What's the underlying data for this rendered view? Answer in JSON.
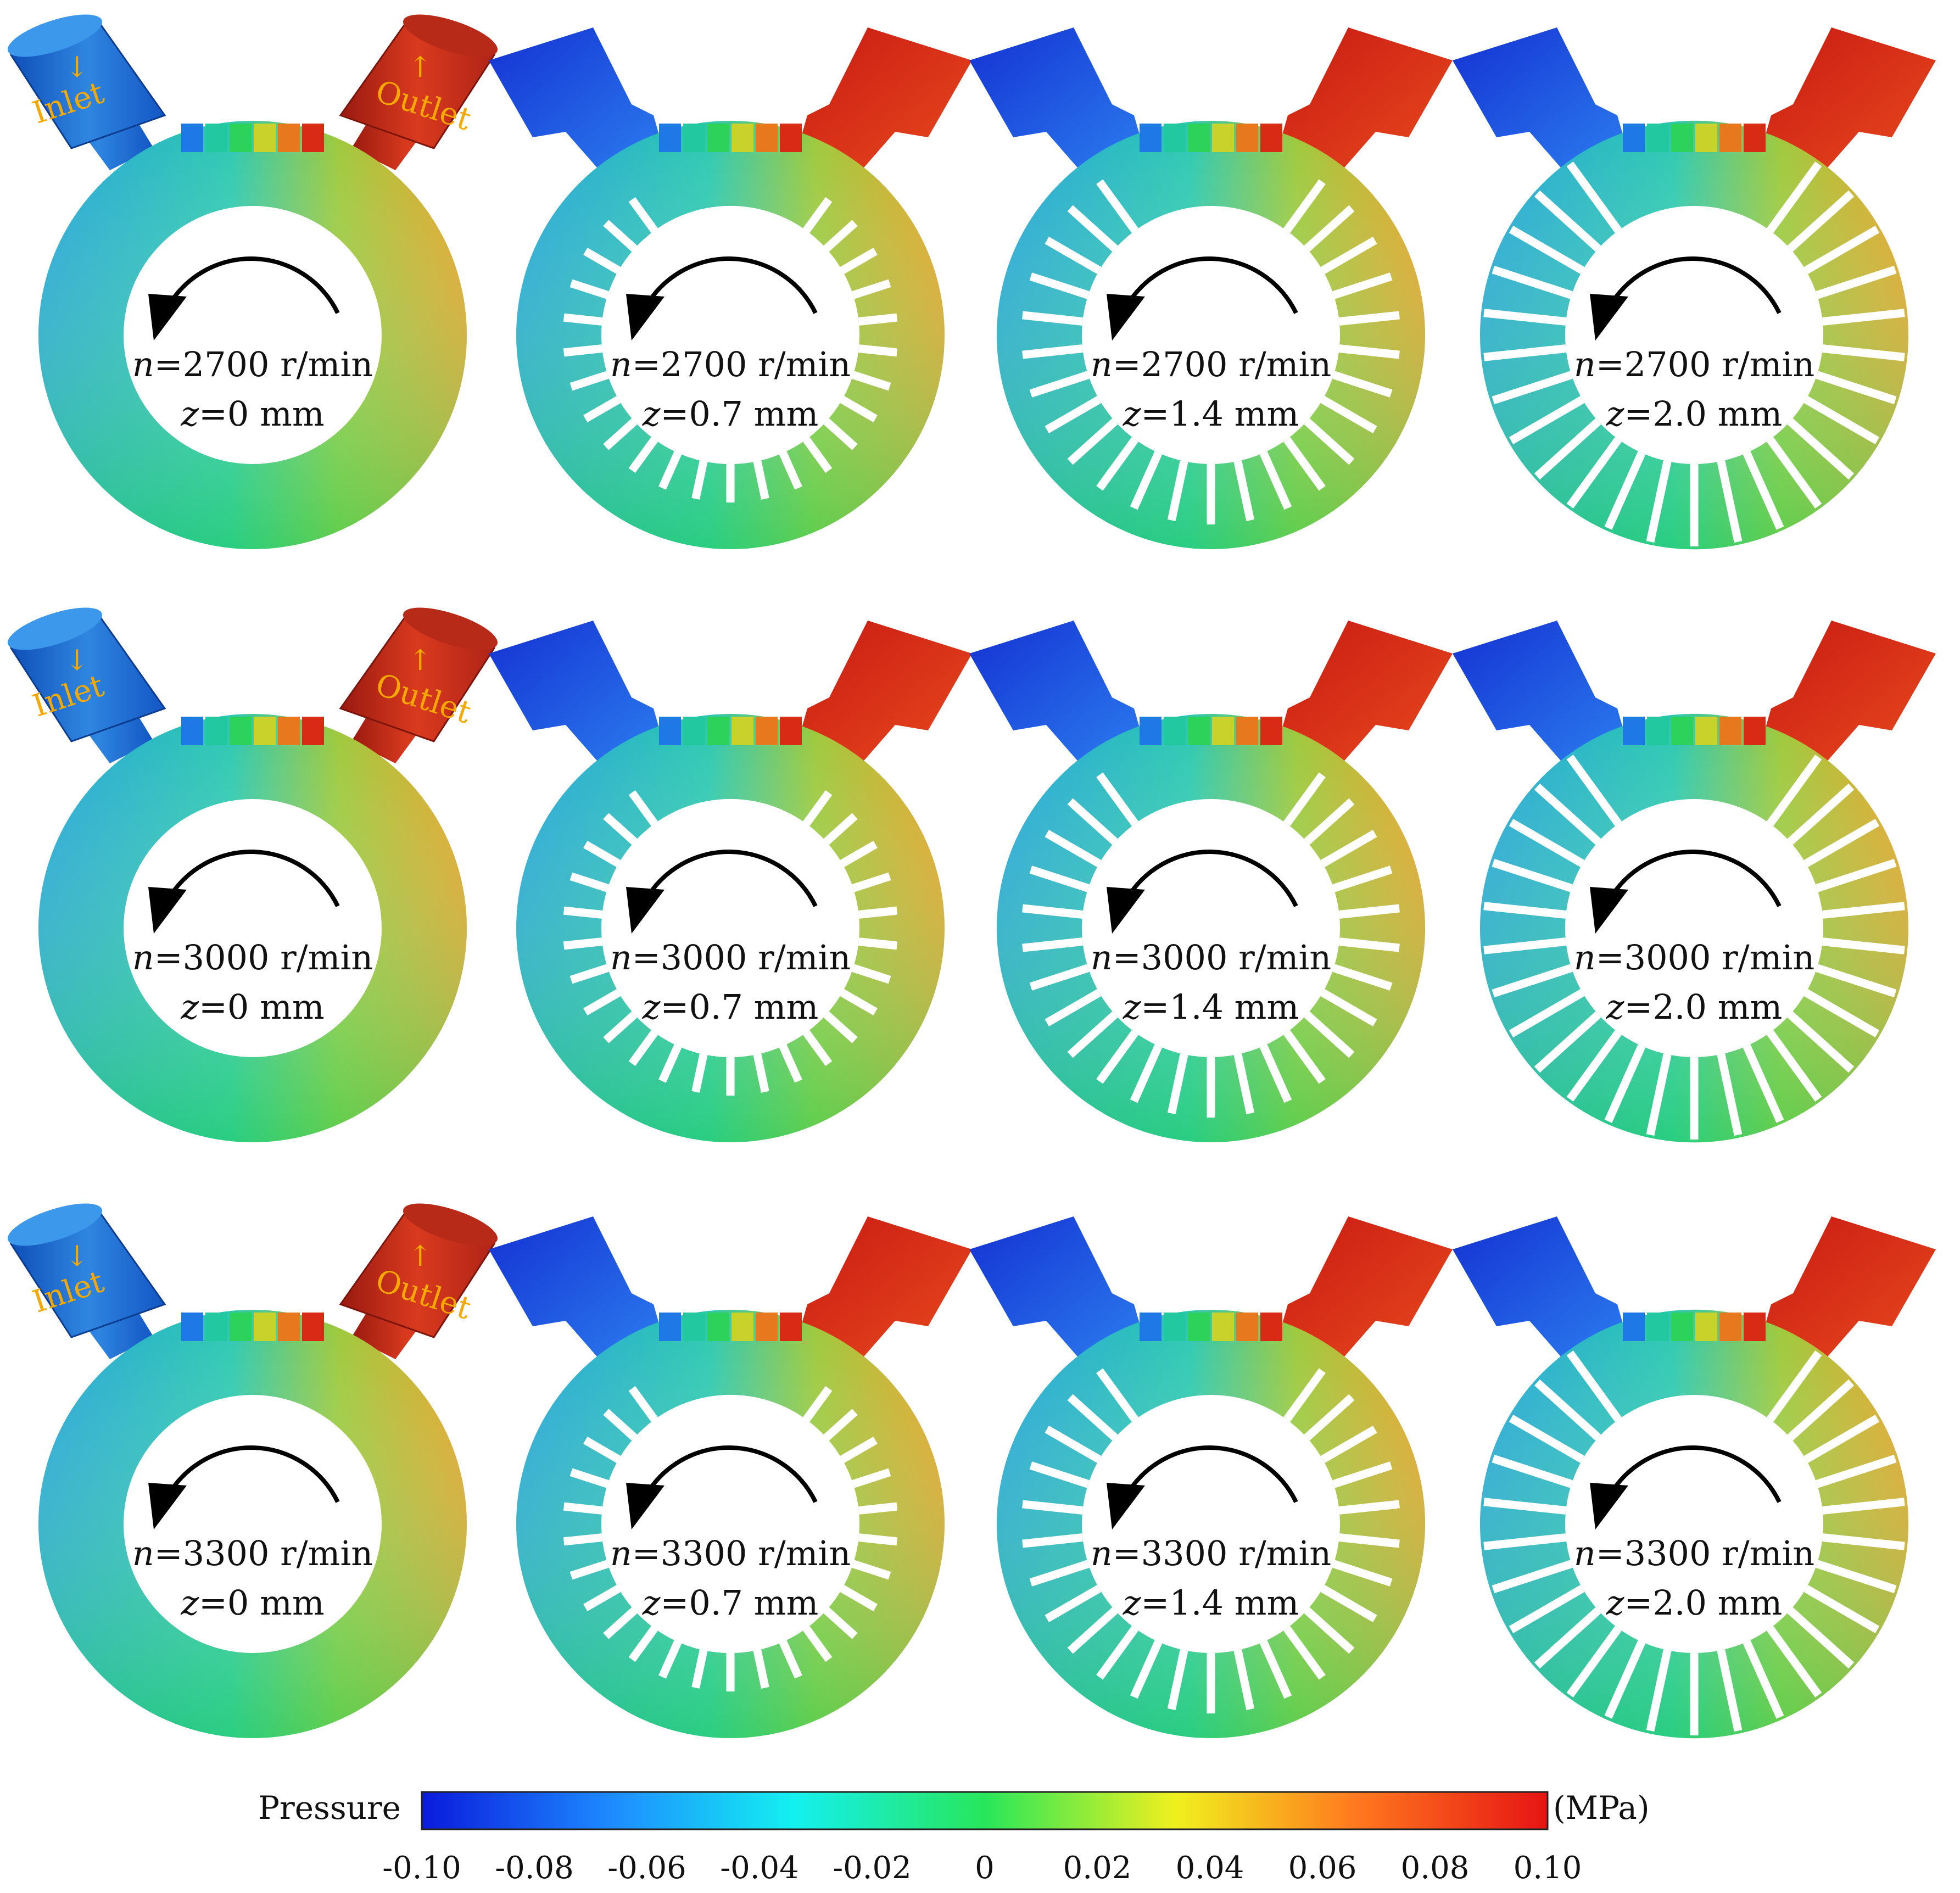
{
  "panels": [
    {
      "speed_var": "n",
      "speed": "=2700 r/min",
      "z_var": "z",
      "z": "=0 mm",
      "inlet_label": "Inlet",
      "outlet_label": "Outlet"
    },
    {
      "speed_var": "n",
      "speed": "=2700 r/min",
      "z_var": "z",
      "z": "=0.7 mm"
    },
    {
      "speed_var": "n",
      "speed": "=2700 r/min",
      "z_var": "z",
      "z": "=1.4 mm"
    },
    {
      "speed_var": "n",
      "speed": "=2700 r/min",
      "z_var": "z",
      "z": "=2.0 mm"
    },
    {
      "speed_var": "n",
      "speed": "=3000 r/min",
      "z_var": "z",
      "z": "=0 mm",
      "inlet_label": "Inlet",
      "outlet_label": "Outlet"
    },
    {
      "speed_var": "n",
      "speed": "=3000 r/min",
      "z_var": "z",
      "z": "=0.7 mm"
    },
    {
      "speed_var": "n",
      "speed": "=3000 r/min",
      "z_var": "z",
      "z": "=1.4 mm"
    },
    {
      "speed_var": "n",
      "speed": "=3000 r/min",
      "z_var": "z",
      "z": "=2.0 mm"
    },
    {
      "speed_var": "n",
      "speed": "=3300 r/min",
      "z_var": "z",
      "z": "=0 mm",
      "inlet_label": "Inlet",
      "outlet_label": "Outlet"
    },
    {
      "speed_var": "n",
      "speed": "=3300 r/min",
      "z_var": "z",
      "z": "=0.7 mm"
    },
    {
      "speed_var": "n",
      "speed": "=3300 r/min",
      "z_var": "z",
      "z": "=1.4 mm"
    },
    {
      "speed_var": "n",
      "speed": "=3300 r/min",
      "z_var": "z",
      "z": "=2.0 mm"
    }
  ],
  "colorbar": {
    "title": "Pressure",
    "unit": "(MPa)",
    "min": -0.1,
    "max": 0.1,
    "ticks": [
      "-0.10",
      "-0.08",
      "-0.06",
      "-0.04",
      "-0.02",
      "0",
      "0.02",
      "0.04",
      "0.06",
      "0.08",
      "0.10"
    ],
    "colors": [
      "#0a1adc",
      "#1e8cff",
      "#14f0f0",
      "#28e65a",
      "#f0f01e",
      "#ff781e",
      "#e61414"
    ]
  }
}
